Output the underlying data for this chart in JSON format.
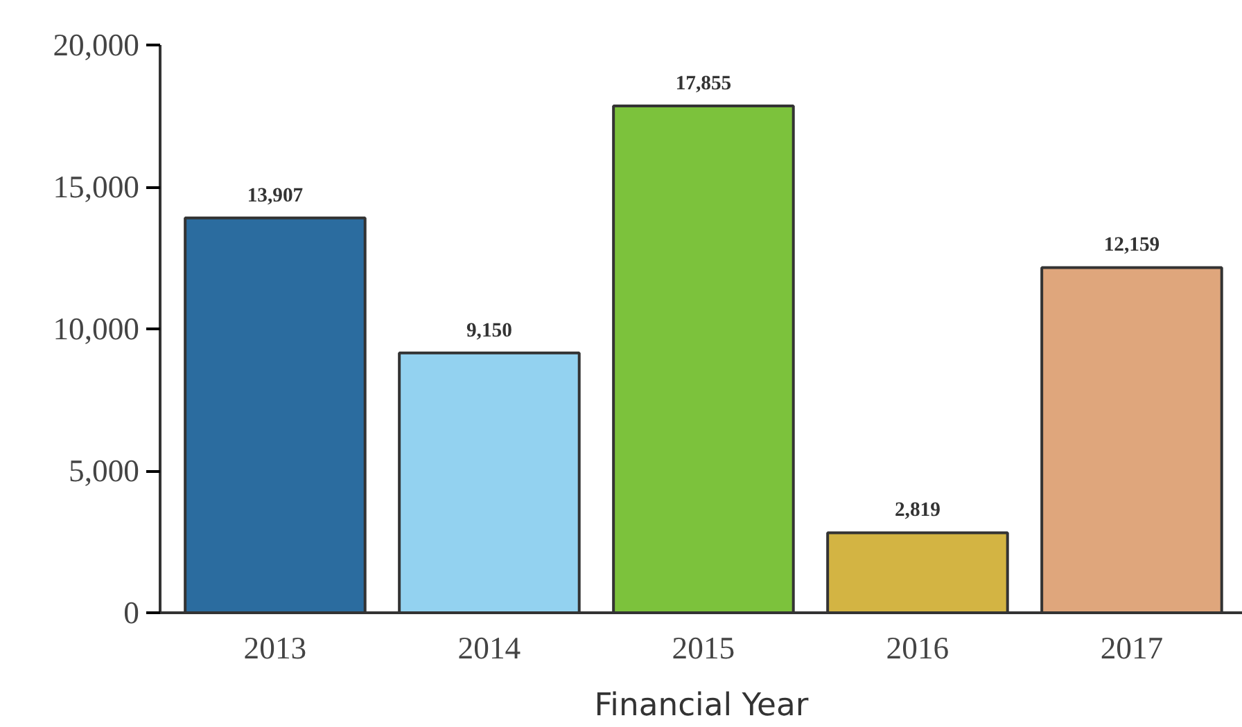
{
  "chart_data": {
    "type": "bar",
    "xlabel": "Financial Year",
    "categories": [
      "2013",
      "2014",
      "2015",
      "2016",
      "2017"
    ],
    "values": [
      13907,
      9150,
      17855,
      2819,
      12159
    ],
    "colors": [
      "#2b6c9f",
      "#93d2f0",
      "#7cc23c",
      "#d3b443",
      "#dfa67c"
    ],
    "ylim": [
      0,
      20000
    ],
    "yticks": [
      {
        "value": 0,
        "label": "0"
      },
      {
        "value": 5000,
        "label": "5,000"
      },
      {
        "value": 10000,
        "label": "10,000"
      },
      {
        "value": 15000,
        "label": "15,000"
      },
      {
        "value": 20000,
        "label": "20,000"
      }
    ],
    "value_labels": [
      "13,907",
      "9,150",
      "17,855",
      "2,819",
      "12,159"
    ],
    "grid": false
  }
}
